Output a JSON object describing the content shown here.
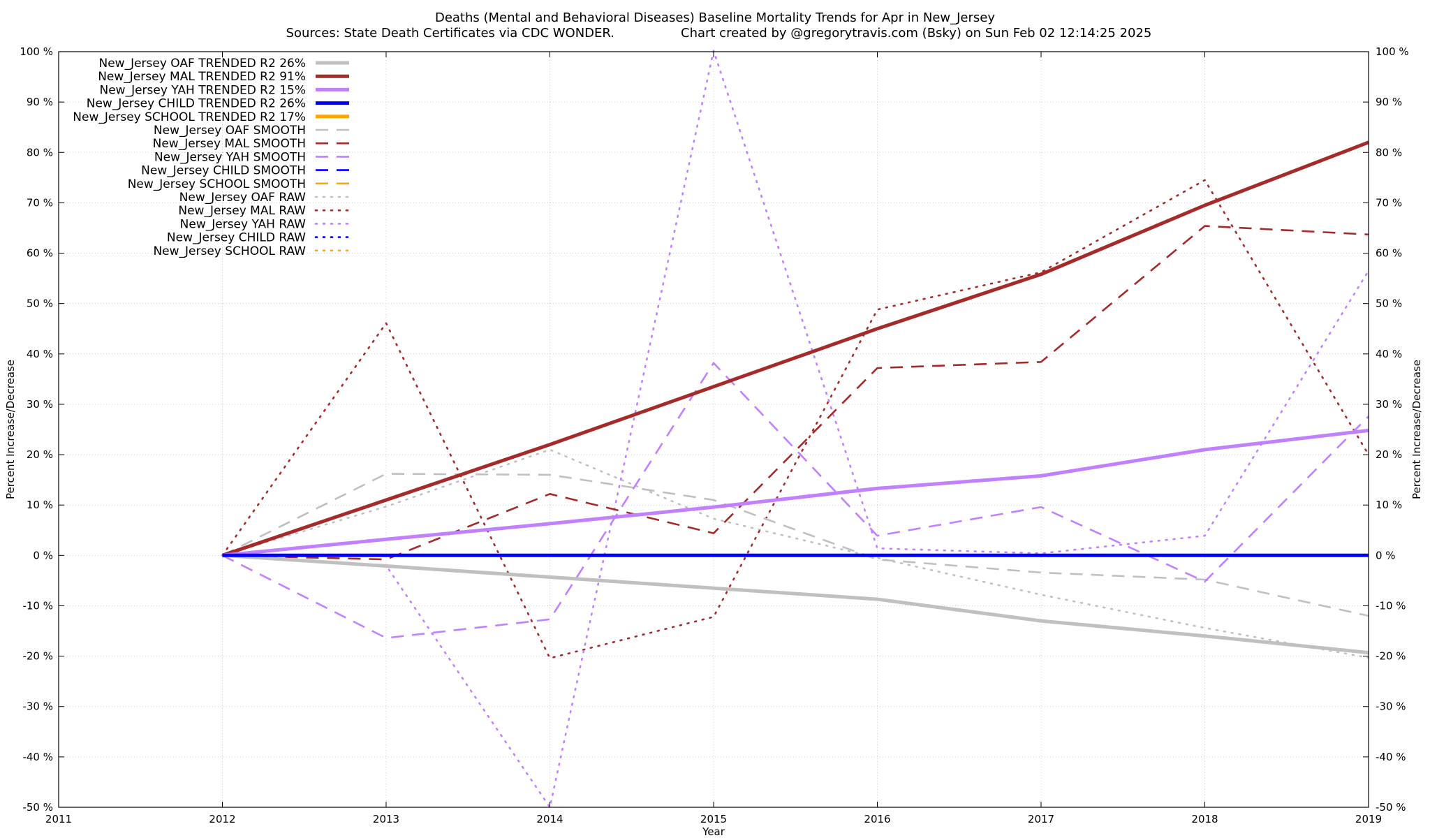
{
  "chart_data": {
    "type": "line",
    "title": "Deaths (Mental and Behavioral Diseases)  Baseline Mortality Trends for Apr in New_Jersey",
    "subtitle_left": "Sources: State Death Certificates via CDC WONDER.",
    "subtitle_right": "Chart created by @gregorytravis.com (Bsky) on Sun Feb 02 12:14:25 2025",
    "xlabel": "Year",
    "ylabel_left": "Percent Increase/Decrease",
    "ylabel_right": "Percent Increase/Decrease",
    "xlim": [
      2011,
      2019
    ],
    "ylim": [
      -50,
      100
    ],
    "x_ticks": [
      "2011",
      "2012",
      "2013",
      "2014",
      "2015",
      "2016",
      "2017",
      "2018",
      "2019"
    ],
    "y_ticks": [
      "-50 %",
      "-40 %",
      "-30 %",
      "-20 %",
      "-10 %",
      "0 %",
      "10 %",
      "20 %",
      "30 %",
      "40 %",
      "50 %",
      "60 %",
      "70 %",
      "80 %",
      "90 %",
      "100 %"
    ],
    "grid": true,
    "legend_position": "top-left",
    "series": [
      {
        "name": "New_Jersey OAF TRENDED R2  26%",
        "style": "solid",
        "color": "#c0c0c0",
        "x": [
          2012,
          2013,
          2014,
          2015,
          2016,
          2017,
          2018,
          2019
        ],
        "y": [
          0,
          -2.1,
          -4.3,
          -6.5,
          -8.7,
          -13,
          -16,
          -19.3
        ]
      },
      {
        "name": "New_Jersey MAL TRENDED R2  91%",
        "style": "solid",
        "color": "#a52a2a",
        "x": [
          2012,
          2013,
          2014,
          2015,
          2016,
          2017,
          2018,
          2019
        ],
        "y": [
          0,
          11,
          22,
          33.5,
          45,
          55.8,
          69.5,
          82
        ]
      },
      {
        "name": "New_Jersey YAH TRENDED R2  15%",
        "style": "solid",
        "color": "#c080ff",
        "x": [
          2012,
          2013,
          2014,
          2015,
          2016,
          2017,
          2018,
          2019
        ],
        "y": [
          0,
          3.2,
          6.3,
          9.6,
          13.3,
          15.8,
          21,
          24.8
        ]
      },
      {
        "name": "New_Jersey CHILD TRENDED R2  26%",
        "style": "solid",
        "color": "#0000ff",
        "x": [
          2012,
          2013,
          2014,
          2015,
          2016,
          2017,
          2018,
          2019
        ],
        "y": [
          0,
          0,
          0,
          0,
          0,
          0,
          0,
          0
        ]
      },
      {
        "name": "New_Jersey SCHOOL TRENDED R2  17%",
        "style": "solid",
        "color": "#ffa500",
        "x": [],
        "y": []
      },
      {
        "name": "New_Jersey OAF SMOOTH",
        "style": "dashed",
        "color": "#c0c0c0",
        "x": [
          2012,
          2013,
          2014,
          2015,
          2016,
          2017,
          2018,
          2019
        ],
        "y": [
          0,
          16.2,
          16,
          11,
          -0.8,
          -3.4,
          -4.8,
          -12
        ]
      },
      {
        "name": "New_Jersey MAL SMOOTH",
        "style": "dashed",
        "color": "#a52a2a",
        "x": [
          2012,
          2013,
          2014,
          2015,
          2016,
          2017,
          2018,
          2019
        ],
        "y": [
          0,
          -0.8,
          12.2,
          4.4,
          37.2,
          38.4,
          65.4,
          63.7
        ]
      },
      {
        "name": "New_Jersey YAH SMOOTH",
        "style": "dashed",
        "color": "#c080ff",
        "x": [
          2012,
          2013,
          2014,
          2015,
          2016,
          2017,
          2018,
          2019
        ],
        "y": [
          0,
          -16.4,
          -12.7,
          38.2,
          3.9,
          9.6,
          -5.2,
          27.6
        ]
      },
      {
        "name": "New_Jersey CHILD SMOOTH",
        "style": "dashed",
        "color": "#0000ff",
        "x": [],
        "y": []
      },
      {
        "name": "New_Jersey SCHOOL SMOOTH",
        "style": "dashed",
        "color": "#ffa500",
        "x": [],
        "y": []
      },
      {
        "name": "New_Jersey OAF RAW",
        "style": "dotted",
        "color": "#c0c0c0",
        "x": [
          2012,
          2013,
          2014,
          2015,
          2016,
          2017,
          2018,
          2019
        ],
        "y": [
          0,
          9.7,
          21,
          7.3,
          -0.5,
          -7.8,
          -14.4,
          -20.3
        ]
      },
      {
        "name": "New_Jersey MAL RAW",
        "style": "dotted",
        "color": "#a52a2a",
        "x": [
          2012,
          2013,
          2014,
          2015,
          2016,
          2017,
          2018,
          2019
        ],
        "y": [
          0,
          46.1,
          -20.4,
          -12.2,
          48.8,
          56.2,
          74.5,
          20
        ]
      },
      {
        "name": "New_Jersey YAH RAW",
        "style": "dotted",
        "color": "#c080ff",
        "x": [
          2012,
          2013,
          2014,
          2015,
          2016,
          2017,
          2018,
          2019
        ],
        "y": [
          0,
          -2,
          -50,
          100.2,
          1.4,
          0.4,
          3.9,
          56.5
        ]
      },
      {
        "name": "New_Jersey CHILD RAW",
        "style": "dotted",
        "color": "#0000ff",
        "x": [],
        "y": []
      },
      {
        "name": "New_Jersey SCHOOL RAW",
        "style": "dotted",
        "color": "#ffa500",
        "x": [],
        "y": []
      }
    ]
  }
}
